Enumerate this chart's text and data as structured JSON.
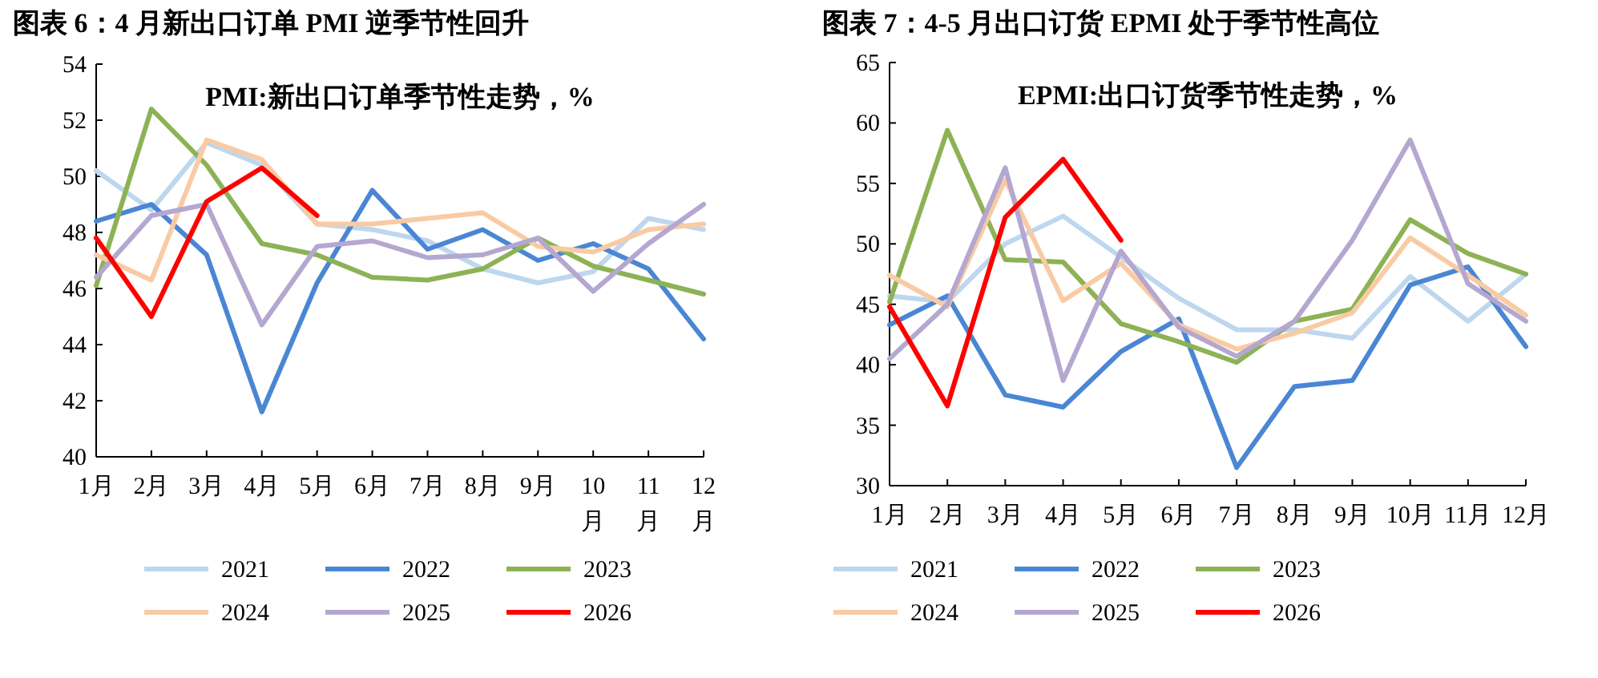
{
  "chart_data": [
    {
      "type": "line",
      "title": "图表 6：4 月新出口订单 PMI 逆季节性回升",
      "subtitle": "PMI:新出口订单季节性走势，%",
      "categories": [
        "1月",
        "2月",
        "3月",
        "4月",
        "5月",
        "6月",
        "7月",
        "8月",
        "9月",
        "10月",
        "11月",
        "12月"
      ],
      "ylim": [
        40,
        54
      ],
      "yticks": [
        40,
        42,
        44,
        46,
        48,
        50,
        52,
        54
      ],
      "legend": "bottom",
      "grid": false,
      "marker": "none",
      "line_style": "solid",
      "series": [
        {
          "name": "2021",
          "color": "#bdd7ee",
          "values": [
            50.2,
            48.8,
            51.2,
            50.4,
            48.3,
            48.1,
            47.7,
            46.7,
            46.2,
            46.6,
            48.5,
            48.1
          ]
        },
        {
          "name": "2022",
          "color": "#4a86d4",
          "values": [
            48.4,
            49.0,
            47.2,
            41.6,
            46.2,
            49.5,
            47.4,
            48.1,
            47.0,
            47.6,
            46.7,
            44.2
          ]
        },
        {
          "name": "2023",
          "color": "#8db255",
          "values": [
            46.1,
            52.4,
            50.4,
            47.6,
            47.2,
            46.4,
            46.3,
            46.7,
            47.8,
            46.8,
            46.3,
            45.8
          ]
        },
        {
          "name": "2024",
          "color": "#f9cba4",
          "values": [
            47.2,
            46.3,
            51.3,
            50.6,
            48.3,
            48.3,
            48.5,
            48.7,
            47.5,
            47.3,
            48.1,
            48.3
          ]
        },
        {
          "name": "2025",
          "color": "#b4a7d0",
          "values": [
            46.4,
            48.6,
            49.0,
            44.7,
            47.5,
            47.7,
            47.1,
            47.2,
            47.8,
            45.9,
            47.6,
            49.0
          ]
        },
        {
          "name": "2026",
          "color": "#ff0000",
          "values": [
            47.8,
            45.0,
            49.1,
            50.3,
            48.6,
            null,
            null,
            null,
            null,
            null,
            null,
            null
          ]
        }
      ]
    },
    {
      "type": "line",
      "title": "图表 7：4-5 月出口订货 EPMI 处于季节性高位",
      "subtitle": "EPMI:出口订货季节性走势，%",
      "categories": [
        "1月",
        "2月",
        "3月",
        "4月",
        "5月",
        "6月",
        "7月",
        "8月",
        "9月",
        "10月",
        "11月",
        "12月"
      ],
      "ylim": [
        30,
        65
      ],
      "yticks": [
        30,
        35,
        40,
        45,
        50,
        55,
        60,
        65
      ],
      "legend": "bottom",
      "grid": false,
      "marker": "none",
      "line_style": "solid",
      "series": [
        {
          "name": "2021",
          "color": "#bdd7ee",
          "values": [
            45.7,
            45.2,
            50.0,
            52.3,
            48.9,
            45.5,
            42.9,
            42.9,
            42.2,
            47.3,
            43.6,
            47.5
          ]
        },
        {
          "name": "2022",
          "color": "#4a86d4",
          "values": [
            43.3,
            45.7,
            37.5,
            36.5,
            41.1,
            43.8,
            31.5,
            38.2,
            38.7,
            46.6,
            48.1,
            41.5
          ]
        },
        {
          "name": "2023",
          "color": "#8db255",
          "values": [
            45.2,
            59.4,
            48.7,
            48.5,
            43.4,
            41.9,
            40.2,
            43.6,
            44.6,
            52.0,
            49.2,
            47.5
          ]
        },
        {
          "name": "2024",
          "color": "#f9cba4",
          "values": [
            47.4,
            44.8,
            55.3,
            45.3,
            48.4,
            43.3,
            41.3,
            42.6,
            44.3,
            50.5,
            47.4,
            44.1
          ]
        },
        {
          "name": "2025",
          "color": "#b4a7d0",
          "values": [
            40.5,
            45.0,
            56.3,
            38.7,
            49.4,
            43.1,
            40.7,
            43.6,
            50.3,
            58.6,
            46.7,
            43.6
          ]
        },
        {
          "name": "2026",
          "color": "#ff0000",
          "values": [
            44.8,
            36.6,
            52.2,
            57.0,
            50.3,
            null,
            null,
            null,
            null,
            null,
            null,
            null
          ]
        }
      ]
    }
  ]
}
